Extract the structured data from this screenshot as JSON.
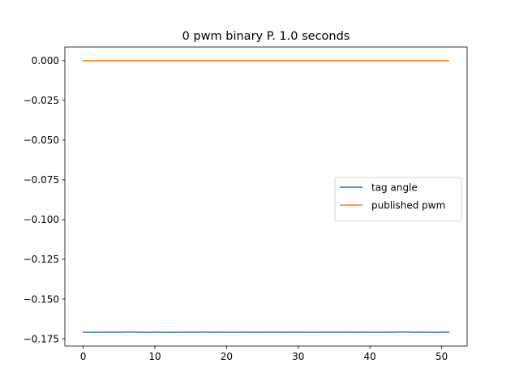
{
  "chart_data": {
    "type": "line",
    "title": "0 pwm binary P. 1.0 seconds",
    "xlabel": "",
    "ylabel": "",
    "xlim": [
      -2.55,
      53.55
    ],
    "ylim": [
      -0.1796,
      0.0086
    ],
    "xticks": [
      0,
      10,
      20,
      30,
      40,
      50
    ],
    "xtick_labels": [
      "0",
      "10",
      "20",
      "30",
      "40",
      "50"
    ],
    "yticks": [
      0.0,
      -0.025,
      -0.05,
      -0.075,
      -0.1,
      -0.125,
      -0.15,
      -0.175
    ],
    "ytick_labels": [
      "0.000",
      "−0.025",
      "−0.050",
      "−0.075",
      "−0.100",
      "−0.125",
      "−0.150",
      "−0.175"
    ],
    "grid": false,
    "legend": {
      "position": "center-right"
    },
    "series": [
      {
        "name": "tag angle",
        "color": "#1f77b4",
        "x": [
          0,
          1,
          2,
          3,
          4,
          5,
          6,
          7,
          8,
          9,
          10,
          11,
          12,
          13,
          14,
          15,
          16,
          17,
          18,
          19,
          20,
          21,
          22,
          23,
          24,
          25,
          26,
          27,
          28,
          29,
          30,
          31,
          32,
          33,
          34,
          35,
          36,
          37,
          38,
          39,
          40,
          41,
          42,
          43,
          44,
          45,
          46,
          47,
          48,
          49,
          50,
          51
        ],
        "values": [
          -0.1709,
          -0.1709,
          -0.171,
          -0.1709,
          -0.1709,
          -0.1709,
          -0.1708,
          -0.1708,
          -0.1709,
          -0.171,
          -0.1709,
          -0.1709,
          -0.171,
          -0.171,
          -0.1709,
          -0.1709,
          -0.1709,
          -0.1708,
          -0.1709,
          -0.1709,
          -0.1709,
          -0.171,
          -0.1709,
          -0.1709,
          -0.1708,
          -0.1709,
          -0.1709,
          -0.1709,
          -0.1709,
          -0.1708,
          -0.1709,
          -0.1709,
          -0.171,
          -0.1709,
          -0.1709,
          -0.1709,
          -0.1709,
          -0.1708,
          -0.1709,
          -0.1709,
          -0.1709,
          -0.171,
          -0.1709,
          -0.1709,
          -0.1708,
          -0.1708,
          -0.1709,
          -0.1709,
          -0.1709,
          -0.171,
          -0.1709,
          -0.1709
        ]
      },
      {
        "name": "published pwm",
        "color": "#ff7f0e",
        "x": [
          0,
          1,
          2,
          3,
          4,
          5,
          6,
          7,
          8,
          9,
          10,
          11,
          12,
          13,
          14,
          15,
          16,
          17,
          18,
          19,
          20,
          21,
          22,
          23,
          24,
          25,
          26,
          27,
          28,
          29,
          30,
          31,
          32,
          33,
          34,
          35,
          36,
          37,
          38,
          39,
          40,
          41,
          42,
          43,
          44,
          45,
          46,
          47,
          48,
          49,
          50,
          51
        ],
        "values": [
          0,
          0,
          0,
          0,
          0,
          0,
          0,
          0,
          0,
          0,
          0,
          0,
          0,
          0,
          0,
          0,
          0,
          0,
          0,
          0,
          0,
          0,
          0,
          0,
          0,
          0,
          0,
          0,
          0,
          0,
          0,
          0,
          0,
          0,
          0,
          0,
          0,
          0,
          0,
          0,
          0,
          0,
          0,
          0,
          0,
          0,
          0,
          0,
          0,
          0,
          0,
          0
        ]
      }
    ]
  }
}
